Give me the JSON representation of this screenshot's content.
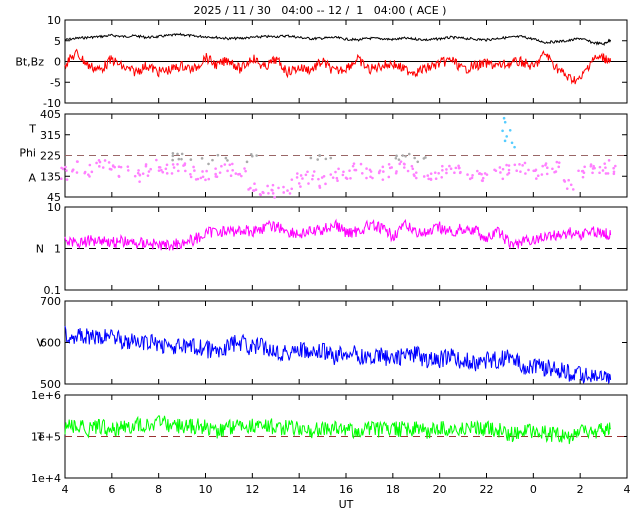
{
  "title": "2025 / 11 / 30   04:00 -- 12 /  1   04:00 ( ACE )",
  "x_axis": {
    "label": "UT",
    "ticks": [
      "4",
      "6",
      "8",
      "10",
      "12",
      "14",
      "16",
      "18",
      "20",
      "22",
      "0",
      "2",
      "4"
    ],
    "range_hours": [
      0,
      24
    ]
  },
  "colors": {
    "bt": "#000000",
    "bz": "#ff0000",
    "phi": "#aaaaaa",
    "theta": "#ff80ff",
    "theta_alt": "#55ccff",
    "density": "#ff00ff",
    "speed": "#0000ff",
    "temperature": "#00ff00",
    "ref_dashed_phi": "#996666",
    "ref_dashed_temp": "#993333"
  },
  "chart_data": [
    {
      "type": "line",
      "panel": "magnetic-field",
      "ylabel": "Bt,Bz",
      "ylim": [
        -10,
        10
      ],
      "yticks": [
        "10",
        "5",
        "0",
        "-5",
        "-10"
      ],
      "reference_line": 0,
      "series": [
        {
          "key": "bt",
          "x": [
            0,
            0.5,
            1,
            1.5,
            2,
            2.5,
            3,
            3.5,
            4,
            4.5,
            5,
            5.5,
            6,
            6.5,
            7,
            7.5,
            8,
            8.5,
            9,
            9.5,
            10,
            10.5,
            11,
            11.5,
            12,
            12.5,
            13,
            13.5,
            14,
            14.5,
            15,
            15.5,
            16,
            16.5,
            17,
            17.5,
            18,
            18.5,
            19,
            19.5,
            20,
            20.5,
            21,
            21.5,
            22,
            22.5,
            23,
            23.3
          ],
          "y": [
            5.2,
            5.6,
            5.8,
            6.0,
            6.3,
            6.0,
            6.2,
            5.8,
            6.0,
            6.3,
            6.5,
            6.1,
            6.0,
            5.8,
            5.5,
            5.6,
            5.8,
            6.0,
            6.0,
            6.2,
            5.8,
            5.5,
            5.6,
            5.8,
            5.4,
            5.2,
            5.6,
            5.5,
            5.3,
            5.6,
            5.4,
            5.2,
            5.5,
            5.8,
            5.6,
            5.4,
            5.2,
            5.6,
            5.8,
            6.0,
            5.4,
            4.6,
            4.8,
            5.0,
            5.6,
            4.6,
            4.2,
            5.2
          ]
        },
        {
          "key": "bz",
          "x": [
            0,
            0.5,
            1,
            1.5,
            2,
            2.5,
            3,
            3.5,
            4,
            4.5,
            5,
            5.5,
            6,
            6.5,
            7,
            7.5,
            8,
            8.5,
            9,
            9.5,
            10,
            10.5,
            11,
            11.5,
            12,
            12.5,
            13,
            13.5,
            14,
            14.5,
            15,
            15.5,
            16,
            16.5,
            17,
            17.5,
            18,
            18.5,
            19,
            19.5,
            20,
            20.5,
            21,
            21.5,
            22,
            22.5,
            23,
            23.3
          ],
          "y": [
            -0.5,
            2.0,
            -1.0,
            -2.0,
            0.5,
            -1.5,
            -2.5,
            -1.0,
            -2.5,
            -2.0,
            -1.0,
            -2.0,
            1.0,
            -1.0,
            0.5,
            -2.0,
            1.0,
            -1.5,
            0.5,
            -2.5,
            -1.5,
            -2.0,
            0.0,
            -2.5,
            -1.5,
            0.5,
            -2.0,
            -1.0,
            -0.5,
            -2.0,
            -2.5,
            -1.5,
            -0.5,
            0.5,
            -2.0,
            -1.0,
            -0.5,
            -1.0,
            -0.5,
            0.0,
            -1.5,
            2.0,
            -1.5,
            -4.0,
            -4.5,
            0.5,
            1.0,
            0.0
          ]
        }
      ]
    },
    {
      "type": "scatter",
      "panel": "angles",
      "ylabel_lines": [
        "T",
        "Phi",
        "A"
      ],
      "ylim": [
        45,
        405
      ],
      "yticks": [
        "405",
        "315",
        "225",
        "135",
        "45"
      ],
      "reference_line": 225,
      "series": [
        {
          "key": "theta",
          "x": [
            0,
            0.5,
            1,
            1.5,
            2,
            2.5,
            3,
            3.5,
            4,
            4.5,
            5,
            5.5,
            6,
            6.5,
            7,
            7.5,
            8,
            8.5,
            9,
            9.5,
            10,
            10.5,
            11,
            11.5,
            12,
            12.5,
            13,
            13.5,
            14,
            14.5,
            15,
            15.5,
            16,
            16.5,
            17,
            17.5,
            18,
            18.5,
            19,
            19.5,
            20,
            20.5,
            21,
            21.5,
            22,
            22.5,
            23,
            23.3
          ],
          "y": [
            150,
            170,
            160,
            175,
            165,
            150,
            140,
            160,
            175,
            165,
            175,
            150,
            130,
            150,
            160,
            140,
            100,
            80,
            70,
            90,
            120,
            130,
            110,
            140,
            150,
            160,
            140,
            150,
            160,
            170,
            155,
            140,
            150,
            165,
            150,
            135,
            140,
            145,
            155,
            165,
            150,
            160,
            175,
            100,
            160,
            170,
            165,
            175
          ]
        },
        {
          "key": "phi",
          "x": [
            4.6,
            4.8,
            5.0,
            5.2,
            6.0,
            6.4,
            6.8,
            7.8,
            8.0,
            10.7,
            11.0,
            11.3,
            14.0,
            14.4,
            14.7,
            15.0,
            15.3
          ],
          "y": [
            215,
            225,
            210,
            220,
            200,
            215,
            205,
            210,
            220,
            225,
            215,
            210,
            225,
            215,
            220,
            210,
            220
          ]
        },
        {
          "key": "theta_alt",
          "x": [
            18.7,
            18.8,
            19.0,
            19.1
          ],
          "y": [
            375,
            335,
            295,
            270
          ]
        }
      ]
    },
    {
      "type": "line",
      "panel": "density",
      "ylabel": "N",
      "ylim": [
        0.1,
        10
      ],
      "log_scale": true,
      "yticks": [
        "10",
        "1",
        "0.1"
      ],
      "reference_line": 1,
      "series": [
        {
          "key": "density",
          "x": [
            0,
            0.5,
            1,
            1.5,
            2,
            2.5,
            3,
            3.5,
            4,
            4.5,
            5,
            5.5,
            6,
            6.5,
            7,
            7.5,
            8,
            8.5,
            9,
            9.5,
            10,
            10.5,
            11,
            11.5,
            12,
            12.5,
            13,
            13.5,
            14,
            14.5,
            15,
            15.5,
            16,
            16.5,
            17,
            17.5,
            18,
            18.5,
            19,
            19.5,
            20,
            20.5,
            21,
            21.5,
            22,
            22.5,
            23,
            23.3
          ],
          "y": [
            1.6,
            1.4,
            1.5,
            1.7,
            1.4,
            1.5,
            1.3,
            1.4,
            1.2,
            1.2,
            1.4,
            1.6,
            2.2,
            2.8,
            2.5,
            2.8,
            2.6,
            3.2,
            3.5,
            2.6,
            2.2,
            2.5,
            2.8,
            3.8,
            2.4,
            2.6,
            3.6,
            3.0,
            2.0,
            3.5,
            2.6,
            2.2,
            3.2,
            2.4,
            3.0,
            2.8,
            1.6,
            2.5,
            1.2,
            1.4,
            1.6,
            1.9,
            2.1,
            2.4,
            2.2,
            2.6,
            2.4,
            2.1
          ]
        }
      ]
    },
    {
      "type": "line",
      "panel": "speed",
      "ylabel": "V",
      "ylim": [
        500,
        700
      ],
      "yticks": [
        "700",
        "600",
        "500"
      ],
      "series": [
        {
          "key": "speed",
          "x": [
            0,
            0.5,
            1,
            1.5,
            2,
            2.5,
            3,
            3.5,
            4,
            4.5,
            5,
            5.5,
            6,
            6.5,
            7,
            7.5,
            8,
            8.5,
            9,
            9.5,
            10,
            10.5,
            11,
            11.5,
            12,
            12.5,
            13,
            13.5,
            14,
            14.5,
            15,
            15.5,
            16,
            16.5,
            17,
            17.5,
            18,
            18.5,
            19,
            19.5,
            20,
            20.5,
            21,
            21.5,
            22,
            22.5,
            23,
            23.3
          ],
          "y": [
            625,
            615,
            612,
            608,
            622,
            603,
            600,
            598,
            598,
            590,
            588,
            590,
            585,
            575,
            595,
            600,
            588,
            590,
            580,
            575,
            585,
            570,
            578,
            565,
            578,
            570,
            562,
            568,
            560,
            570,
            572,
            555,
            560,
            565,
            555,
            552,
            555,
            560,
            565,
            545,
            545,
            540,
            535,
            528,
            520,
            522,
            515,
            510
          ]
        }
      ]
    },
    {
      "type": "line",
      "panel": "temperature",
      "ylabel": "T",
      "ylim": [
        10000,
        1000000
      ],
      "log_scale": true,
      "yticks": [
        "1e+6",
        "1e+5",
        "1e+4"
      ],
      "reference_line": 100000,
      "series": [
        {
          "key": "temperature",
          "x": [
            0,
            0.5,
            1,
            1.5,
            2,
            2.5,
            3,
            3.5,
            4,
            4.5,
            5,
            5.5,
            6,
            6.5,
            7,
            7.5,
            8,
            8.5,
            9,
            9.5,
            10,
            10.5,
            11,
            11.5,
            12,
            12.5,
            13,
            13.5,
            14,
            14.5,
            15,
            15.5,
            16,
            16.5,
            17,
            17.5,
            18,
            18.5,
            19,
            19.5,
            20,
            20.5,
            21,
            21.5,
            22,
            22.5,
            23,
            23.3
          ],
          "y": [
            160000,
            175000,
            150000,
            170000,
            155000,
            165000,
            185000,
            200000,
            220000,
            190000,
            170000,
            180000,
            165000,
            140000,
            170000,
            200000,
            180000,
            190000,
            170000,
            160000,
            150000,
            140000,
            160000,
            150000,
            145000,
            135000,
            150000,
            140000,
            145000,
            155000,
            150000,
            130000,
            160000,
            150000,
            145000,
            160000,
            150000,
            140000,
            110000,
            130000,
            140000,
            120000,
            110000,
            100000,
            130000,
            120000,
            140000,
            150000
          ]
        }
      ]
    }
  ]
}
